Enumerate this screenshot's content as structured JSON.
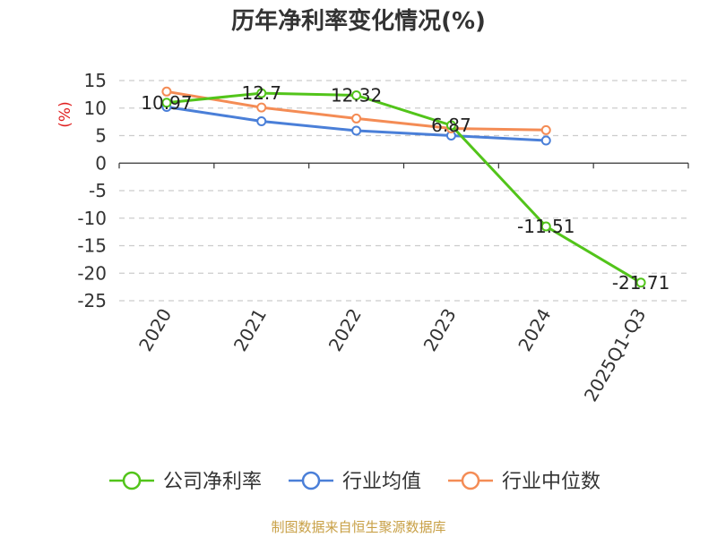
{
  "chart_data": {
    "type": "line",
    "title": "历年净利率变化情况(%)",
    "ylabel": "(%)",
    "xlabel": "",
    "categories": [
      "2020",
      "2021",
      "2022",
      "2023",
      "2024",
      "2025Q1-Q3"
    ],
    "ylim": [
      -25,
      15
    ],
    "yticks": [
      15,
      10,
      5,
      0,
      -5,
      -10,
      -15,
      -20,
      -25
    ],
    "grid": true,
    "legend_position": "bottom",
    "series": [
      {
        "name": "公司净利率",
        "color": "#52c41a",
        "values": [
          10.97,
          12.7,
          12.32,
          6.87,
          -11.51,
          -21.71
        ],
        "labels": [
          "10.97",
          "12.7",
          "12.32",
          "6.87",
          "-11.51",
          "-21.71"
        ]
      },
      {
        "name": "行业均值",
        "color": "#4a7fd8",
        "values": [
          10.2,
          7.6,
          5.9,
          5.0,
          4.1,
          null
        ],
        "labels": []
      },
      {
        "name": "行业中位数",
        "color": "#f48c55",
        "values": [
          13.0,
          10.1,
          8.1,
          6.3,
          6.0,
          null
        ],
        "labels": []
      }
    ]
  },
  "footer": {
    "source": "制图数据来自恒生聚源数据库"
  }
}
